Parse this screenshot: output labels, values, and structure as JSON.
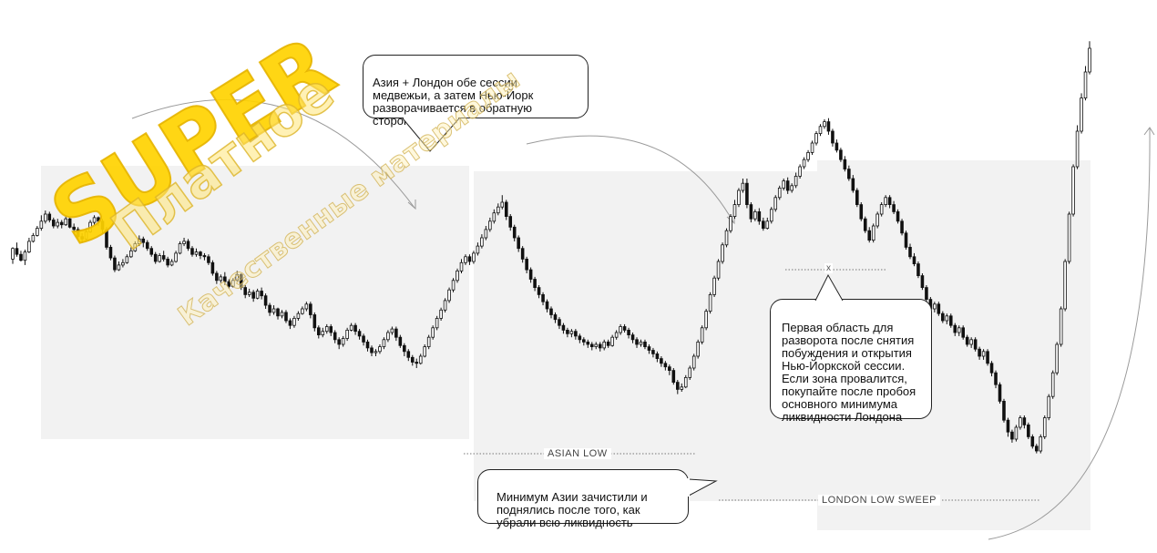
{
  "chart_data": {
    "type": "candlestick",
    "ohlc": [
      [
        12,
        21,
        8,
        22
      ],
      [
        21,
        16,
        14,
        26
      ],
      [
        16,
        11,
        10,
        19
      ],
      [
        11,
        18,
        7,
        20
      ],
      [
        18,
        27,
        17,
        30
      ],
      [
        27,
        32,
        26,
        34
      ],
      [
        32,
        38,
        31,
        40
      ],
      [
        38,
        44,
        36,
        49
      ],
      [
        44,
        50,
        42,
        53
      ],
      [
        50,
        45,
        43,
        52
      ],
      [
        45,
        40,
        38,
        47
      ],
      [
        40,
        43,
        38,
        46
      ],
      [
        43,
        41,
        38,
        45
      ],
      [
        41,
        46,
        40,
        48
      ],
      [
        46,
        39,
        38,
        47
      ],
      [
        39,
        37,
        35,
        42
      ],
      [
        37,
        31,
        29,
        39
      ],
      [
        31,
        29,
        26,
        34
      ],
      [
        29,
        35,
        28,
        38
      ],
      [
        35,
        43,
        34,
        45
      ],
      [
        43,
        47,
        41,
        49
      ],
      [
        47,
        44,
        40,
        48
      ],
      [
        44,
        37,
        34,
        46
      ],
      [
        37,
        22,
        20,
        39
      ],
      [
        22,
        13,
        11,
        24
      ],
      [
        13,
        3,
        1,
        15
      ],
      [
        3,
        7,
        2,
        10
      ],
      [
        7,
        9,
        5,
        12
      ],
      [
        9,
        14,
        8,
        16
      ],
      [
        14,
        19,
        13,
        22
      ],
      [
        19,
        25,
        18,
        27
      ],
      [
        25,
        29,
        23,
        32
      ],
      [
        29,
        26,
        22,
        31
      ],
      [
        26,
        21,
        19,
        28
      ],
      [
        21,
        16,
        14,
        23
      ],
      [
        16,
        10,
        8,
        18
      ],
      [
        10,
        15,
        9,
        17
      ],
      [
        15,
        12,
        10,
        19
      ],
      [
        12,
        7,
        5,
        14
      ],
      [
        7,
        10,
        6,
        12
      ],
      [
        10,
        17,
        9,
        19
      ],
      [
        17,
        25,
        16,
        27
      ],
      [
        25,
        27,
        23,
        30
      ],
      [
        27,
        21,
        19,
        29
      ],
      [
        21,
        16,
        14,
        23
      ],
      [
        16,
        18,
        14,
        21
      ],
      [
        18,
        15,
        12,
        19
      ],
      [
        15,
        14,
        11,
        17
      ],
      [
        14,
        9,
        7,
        16
      ],
      [
        9,
        0,
        -2,
        11
      ],
      [
        0,
        -6,
        -9,
        2
      ],
      [
        -6,
        -3,
        -8,
        -1
      ],
      [
        -3,
        -7,
        -10,
        1
      ],
      [
        -7,
        -11,
        -13,
        -5
      ],
      [
        -11,
        -6,
        -12,
        -4
      ],
      [
        -6,
        -1,
        -7,
        2
      ],
      [
        -1,
        -12,
        -14,
        0
      ],
      [
        -12,
        -18,
        -21,
        -10
      ],
      [
        -18,
        -16,
        -20,
        -13
      ],
      [
        -16,
        -21,
        -24,
        -14
      ],
      [
        -21,
        -15,
        -22,
        -13
      ],
      [
        -15,
        -19,
        -22,
        -12
      ],
      [
        -19,
        -27,
        -30,
        -17
      ],
      [
        -27,
        -33,
        -36,
        -25
      ],
      [
        -33,
        -30,
        -35,
        -27
      ],
      [
        -30,
        -36,
        -39,
        -29
      ],
      [
        -36,
        -33,
        -38,
        -31
      ],
      [
        -33,
        -40,
        -42,
        -31
      ],
      [
        -40,
        -44,
        -47,
        -38
      ],
      [
        -44,
        -38,
        -46,
        -36
      ],
      [
        -38,
        -34,
        -40,
        -32
      ],
      [
        -34,
        -30,
        -35,
        -28
      ],
      [
        -30,
        -26,
        -32,
        -24
      ],
      [
        -26,
        -35,
        -38,
        -24
      ],
      [
        -35,
        -46,
        -49,
        -33
      ],
      [
        -46,
        -52,
        -55,
        -44
      ],
      [
        -52,
        -49,
        -54,
        -46
      ],
      [
        -49,
        -45,
        -51,
        -43
      ],
      [
        -45,
        -50,
        -53,
        -43
      ],
      [
        -50,
        -56,
        -59,
        -48
      ],
      [
        -56,
        -60,
        -64,
        -54
      ],
      [
        -60,
        -55,
        -62,
        -53
      ],
      [
        -55,
        -48,
        -57,
        -46
      ],
      [
        -48,
        -44,
        -49,
        -42
      ],
      [
        -44,
        -49,
        -52,
        -42
      ],
      [
        -49,
        -53,
        -56,
        -47
      ],
      [
        -53,
        -58,
        -61,
        -51
      ],
      [
        -58,
        -63,
        -66,
        -56
      ],
      [
        -63,
        -67,
        -70,
        -61
      ],
      [
        -67,
        -66,
        -70,
        -64
      ],
      [
        -66,
        -62,
        -68,
        -60
      ],
      [
        -62,
        -56,
        -64,
        -54
      ],
      [
        -56,
        -50,
        -58,
        -48
      ],
      [
        -50,
        -47,
        -52,
        -45
      ],
      [
        -47,
        -54,
        -57,
        -45
      ],
      [
        -54,
        -61,
        -63,
        -52
      ],
      [
        -61,
        -66,
        -70,
        -59
      ],
      [
        -66,
        -71,
        -74,
        -64
      ],
      [
        -71,
        -75,
        -78,
        -69
      ],
      [
        -75,
        -76,
        -80,
        -72
      ],
      [
        -76,
        -70,
        -77,
        -68
      ],
      [
        -70,
        -62,
        -71,
        -60
      ],
      [
        -62,
        -54,
        -64,
        -52
      ],
      [
        -54,
        -46,
        -56,
        -44
      ],
      [
        -46,
        -38,
        -48,
        -36
      ],
      [
        -38,
        -31,
        -40,
        -29
      ],
      [
        -31,
        -23,
        -33,
        -21
      ],
      [
        -23,
        -14,
        -25,
        -12
      ],
      [
        -14,
        -6,
        -16,
        -4
      ],
      [
        -6,
        2,
        -8,
        4
      ],
      [
        2,
        9,
        0,
        12
      ],
      [
        9,
        14,
        7,
        16
      ],
      [
        14,
        10,
        7,
        16
      ],
      [
        10,
        17,
        8,
        19
      ],
      [
        17,
        23,
        15,
        26
      ],
      [
        23,
        30,
        21,
        33
      ],
      [
        30,
        37,
        28,
        40
      ],
      [
        37,
        44,
        35,
        47
      ],
      [
        44,
        51,
        42,
        54
      ],
      [
        51,
        56,
        49,
        59
      ],
      [
        56,
        60,
        54,
        66
      ],
      [
        60,
        48,
        45,
        62
      ],
      [
        48,
        39,
        36,
        50
      ],
      [
        39,
        30,
        27,
        41
      ],
      [
        30,
        21,
        18,
        32
      ],
      [
        21,
        12,
        9,
        23
      ],
      [
        12,
        3,
        0,
        14
      ],
      [
        3,
        -5,
        -8,
        5
      ],
      [
        -5,
        -12,
        -15,
        -3
      ],
      [
        -12,
        -18,
        -21,
        -10
      ],
      [
        -18,
        -24,
        -27,
        -16
      ],
      [
        -24,
        -30,
        -33,
        -22
      ],
      [
        -30,
        -35,
        -38,
        -28
      ],
      [
        -35,
        -39,
        -42,
        -33
      ],
      [
        -39,
        -44,
        -47,
        -37
      ],
      [
        -44,
        -48,
        -51,
        -42
      ],
      [
        -48,
        -51,
        -54,
        -46
      ],
      [
        -51,
        -49,
        -54,
        -47
      ],
      [
        -49,
        -53,
        -56,
        -47
      ],
      [
        -53,
        -56,
        -59,
        -51
      ],
      [
        -56,
        -58,
        -61,
        -54
      ],
      [
        -58,
        -60,
        -63,
        -56
      ],
      [
        -60,
        -62,
        -65,
        -58
      ],
      [
        -62,
        -60,
        -64,
        -58
      ],
      [
        -60,
        -63,
        -66,
        -58
      ],
      [
        -63,
        -58,
        -65,
        -56
      ],
      [
        -58,
        -61,
        -63,
        -56
      ],
      [
        -61,
        -54,
        -62,
        -52
      ],
      [
        -54,
        -50,
        -56,
        -48
      ],
      [
        -50,
        -45,
        -52,
        -43
      ],
      [
        -45,
        -48,
        -50,
        -43
      ],
      [
        -48,
        -52,
        -55,
        -46
      ],
      [
        -52,
        -56,
        -59,
        -50
      ],
      [
        -56,
        -60,
        -63,
        -54
      ],
      [
        -60,
        -58,
        -62,
        -56
      ],
      [
        -58,
        -62,
        -64,
        -56
      ],
      [
        -62,
        -65,
        -68,
        -60
      ],
      [
        -65,
        -68,
        -71,
        -63
      ],
      [
        -68,
        -72,
        -75,
        -66
      ],
      [
        -72,
        -76,
        -79,
        -70
      ],
      [
        -76,
        -79,
        -82,
        -74
      ],
      [
        -79,
        -82,
        -86,
        -77
      ],
      [
        -82,
        -92,
        -94,
        -80
      ],
      [
        -92,
        -98,
        -102,
        -90
      ],
      [
        -98,
        -96,
        -100,
        -93
      ],
      [
        -96,
        -88,
        -97,
        -86
      ],
      [
        -88,
        -80,
        -90,
        -78
      ],
      [
        -80,
        -70,
        -82,
        -68
      ],
      [
        -70,
        -58,
        -72,
        -56
      ],
      [
        -58,
        -46,
        -60,
        -44
      ],
      [
        -46,
        -32,
        -48,
        -30
      ],
      [
        -32,
        -18,
        -34,
        -16
      ],
      [
        -18,
        -4,
        -20,
        -2
      ],
      [
        -4,
        10,
        -6,
        12
      ],
      [
        10,
        24,
        8,
        26
      ],
      [
        24,
        36,
        22,
        38
      ],
      [
        36,
        48,
        34,
        50
      ],
      [
        48,
        58,
        46,
        62
      ],
      [
        58,
        70,
        56,
        72
      ],
      [
        70,
        76,
        68,
        80
      ],
      [
        76,
        58,
        55,
        80
      ],
      [
        58,
        46,
        43,
        60
      ],
      [
        46,
        52,
        44,
        54
      ],
      [
        52,
        44,
        41,
        55
      ],
      [
        44,
        38,
        36,
        47
      ],
      [
        38,
        44,
        37,
        47
      ],
      [
        44,
        54,
        42,
        56
      ],
      [
        54,
        64,
        52,
        66
      ],
      [
        64,
        72,
        62,
        74
      ],
      [
        72,
        78,
        70,
        80
      ],
      [
        78,
        70,
        67,
        81
      ],
      [
        70,
        74,
        68,
        76
      ],
      [
        74,
        82,
        72,
        85
      ],
      [
        82,
        90,
        80,
        92
      ],
      [
        90,
        96,
        88,
        98
      ],
      [
        96,
        102,
        94,
        104
      ],
      [
        102,
        110,
        100,
        112
      ],
      [
        110,
        118,
        108,
        120
      ],
      [
        118,
        124,
        116,
        126
      ],
      [
        124,
        128,
        122,
        130
      ],
      [
        128,
        120,
        117,
        131
      ],
      [
        120,
        110,
        107,
        122
      ],
      [
        110,
        104,
        102,
        113
      ],
      [
        104,
        96,
        94,
        106
      ],
      [
        96,
        88,
        86,
        99
      ],
      [
        88,
        80,
        78,
        91
      ],
      [
        80,
        70,
        68,
        83
      ],
      [
        70,
        58,
        56,
        72
      ],
      [
        58,
        46,
        44,
        60
      ],
      [
        46,
        36,
        34,
        48
      ],
      [
        36,
        28,
        26,
        39
      ],
      [
        28,
        40,
        26,
        42
      ],
      [
        40,
        50,
        38,
        52
      ],
      [
        50,
        58,
        48,
        60
      ],
      [
        58,
        64,
        56,
        66
      ],
      [
        64,
        58,
        55,
        66
      ],
      [
        58,
        52,
        50,
        61
      ],
      [
        52,
        44,
        42,
        54
      ],
      [
        44,
        34,
        32,
        46
      ],
      [
        34,
        22,
        20,
        36
      ],
      [
        22,
        14,
        12,
        25
      ],
      [
        14,
        8,
        6,
        17
      ],
      [
        8,
        -2,
        -4,
        10
      ],
      [
        -2,
        -12,
        -14,
        0
      ],
      [
        -12,
        -22,
        -24,
        -10
      ],
      [
        -22,
        -30,
        -32,
        -20
      ],
      [
        -30,
        -26,
        -33,
        -24
      ],
      [
        -26,
        -34,
        -36,
        -24
      ],
      [
        -34,
        -40,
        -42,
        -32
      ],
      [
        -40,
        -36,
        -43,
        -34
      ],
      [
        -36,
        -44,
        -46,
        -34
      ],
      [
        -44,
        -50,
        -53,
        -42
      ],
      [
        -50,
        -46,
        -53,
        -44
      ],
      [
        -46,
        -54,
        -56,
        -44
      ],
      [
        -54,
        -60,
        -62,
        -52
      ],
      [
        -60,
        -56,
        -63,
        -54
      ],
      [
        -56,
        -64,
        -66,
        -54
      ],
      [
        -64,
        -70,
        -73,
        -62
      ],
      [
        -70,
        -66,
        -73,
        -64
      ],
      [
        -66,
        -76,
        -78,
        -64
      ],
      [
        -76,
        -84,
        -87,
        -74
      ],
      [
        -84,
        -94,
        -97,
        -82
      ],
      [
        -94,
        -108,
        -110,
        -92
      ],
      [
        -108,
        -124,
        -126,
        -106
      ],
      [
        -124,
        -134,
        -138,
        -122
      ],
      [
        -134,
        -140,
        -143,
        -132
      ],
      [
        -140,
        -130,
        -142,
        -128
      ],
      [
        -130,
        -122,
        -132,
        -120
      ],
      [
        -122,
        -128,
        -131,
        -120
      ],
      [
        -128,
        -138,
        -140,
        -126
      ],
      [
        -138,
        -146,
        -148,
        -136
      ],
      [
        -146,
        -150,
        -152,
        -144
      ],
      [
        -150,
        -138,
        -152,
        -136
      ],
      [
        -138,
        -122,
        -140,
        -120
      ],
      [
        -122,
        -104,
        -124,
        -102
      ],
      [
        -104,
        -84,
        -106,
        -82
      ],
      [
        -84,
        -60,
        -86,
        -58
      ],
      [
        -60,
        -30,
        -62,
        -28
      ],
      [
        -30,
        10,
        -32,
        12
      ],
      [
        10,
        50,
        8,
        52
      ],
      [
        50,
        90,
        48,
        92
      ],
      [
        90,
        120,
        88,
        125
      ],
      [
        120,
        148,
        118,
        152
      ],
      [
        148,
        170,
        146,
        175
      ],
      [
        170,
        190,
        168,
        196
      ]
    ],
    "levels": [
      {
        "label": "ASIAN LOW",
        "value": -55
      },
      {
        "label": "LONDON LOW  SWEEP",
        "value": -100
      },
      {
        "label": "x",
        "value": 40
      }
    ]
  },
  "callouts": {
    "top": "Азия + Лондон обе сессии\nмедвежьи, а затем Нью-Йорк\nразворачивается в обратную\nсторону",
    "bottom_left": "Минимум Азии зачистили и\nподнялись после того, как\nубрали всю ликвидность",
    "right": "Первая область для\nразворота после снятия\nпобуждения и открытия\nНью-Йоркской сессии.\nЕсли зона провалится,\nпокупайте после пробоя\nосновного минимума\nликвидности Лондона"
  },
  "watermark": {
    "brand": "SUPER",
    "line1": "Платное",
    "line2": "Качественные материалы"
  }
}
